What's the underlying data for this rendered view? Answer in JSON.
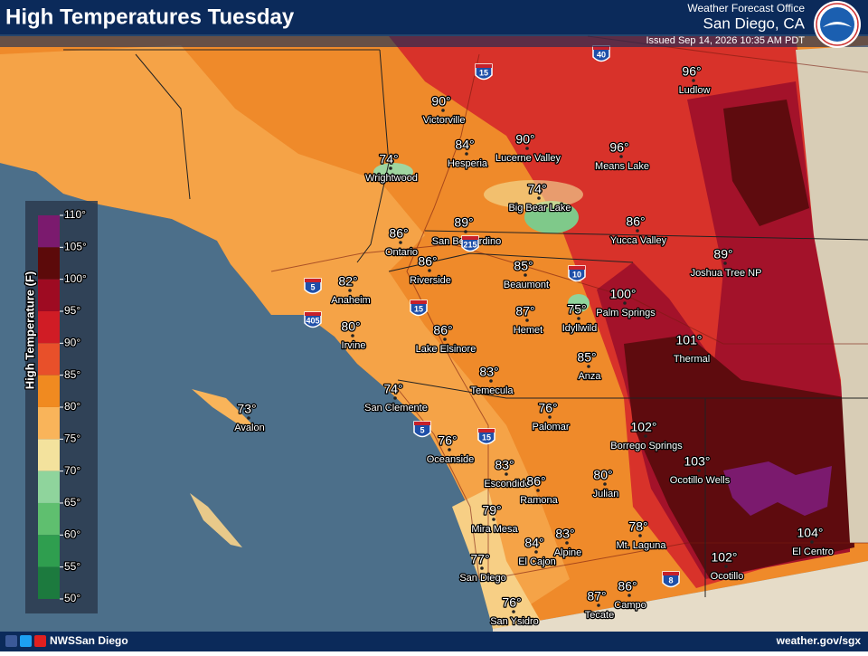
{
  "header": {
    "title": "High Temperatures Tuesday",
    "office": "Weather Forecast Office",
    "location": "San Diego, CA",
    "issued": "Issued Sep 14, 2026 10:35 AM PDT"
  },
  "legend": {
    "title": "High Temperature (F)",
    "ticks": [
      "110°",
      "105°",
      "100°",
      "95°",
      "90°",
      "85°",
      "80°",
      "75°",
      "70°",
      "65°",
      "60°",
      "55°",
      "50°"
    ]
  },
  "cities": [
    {
      "temp": "96°",
      "name": "Ludlow"
    },
    {
      "temp": "90°",
      "name": "Victorville"
    },
    {
      "temp": "84°",
      "name": "Hesperia"
    },
    {
      "temp": "90°",
      "name": "Lucerne Valley"
    },
    {
      "temp": "96°",
      "name": "Means Lake"
    },
    {
      "temp": "74°",
      "name": "Wrightwood"
    },
    {
      "temp": "74°",
      "name": "Big Bear Lake"
    },
    {
      "temp": "86°",
      "name": "Yucca Valley"
    },
    {
      "temp": "89°",
      "name": "Joshua Tree NP"
    },
    {
      "temp": "86°",
      "name": "Ontario"
    },
    {
      "temp": "89°",
      "name": "San Bernardino"
    },
    {
      "temp": "86°",
      "name": "Riverside"
    },
    {
      "temp": "85°",
      "name": "Beaumont"
    },
    {
      "temp": "82°",
      "name": "Anaheim"
    },
    {
      "temp": "100°",
      "name": "Palm Springs"
    },
    {
      "temp": "80°",
      "name": "Irvine"
    },
    {
      "temp": "87°",
      "name": "Hemet"
    },
    {
      "temp": "75°",
      "name": "Idyllwild"
    },
    {
      "temp": "86°",
      "name": "Lake Elsinore"
    },
    {
      "temp": "101°",
      "name": "Thermal"
    },
    {
      "temp": "85°",
      "name": "Anza"
    },
    {
      "temp": "83°",
      "name": "Temecula"
    },
    {
      "temp": "74°",
      "name": "San Clemente"
    },
    {
      "temp": "76°",
      "name": "Palomar"
    },
    {
      "temp": "73°",
      "name": "Avalon"
    },
    {
      "temp": "102°",
      "name": "Borrego Springs"
    },
    {
      "temp": "76°",
      "name": "Oceanside"
    },
    {
      "temp": "103°",
      "name": "Ocotillo Wells"
    },
    {
      "temp": "83°",
      "name": "Escondido"
    },
    {
      "temp": "86°",
      "name": "Ramona"
    },
    {
      "temp": "80°",
      "name": "Julian"
    },
    {
      "temp": "79°",
      "name": "Mira Mesa"
    },
    {
      "temp": "78°",
      "name": "Mt. Laguna"
    },
    {
      "temp": "83°",
      "name": "Alpine"
    },
    {
      "temp": "84°",
      "name": "El Cajon"
    },
    {
      "temp": "104°",
      "name": "El Centro"
    },
    {
      "temp": "77°",
      "name": "San Diego"
    },
    {
      "temp": "102°",
      "name": "Ocotillo"
    },
    {
      "temp": "87°",
      "name": "Tecate"
    },
    {
      "temp": "86°",
      "name": "Campo"
    },
    {
      "temp": "76°",
      "name": "San Ysidro"
    }
  ],
  "highways": [
    "40",
    "15",
    "10",
    "5",
    "405",
    "215",
    "15",
    "5",
    "15",
    "8"
  ],
  "footer": {
    "handle": "NWSSan Diego",
    "url": "weather.gov/sgx"
  }
}
